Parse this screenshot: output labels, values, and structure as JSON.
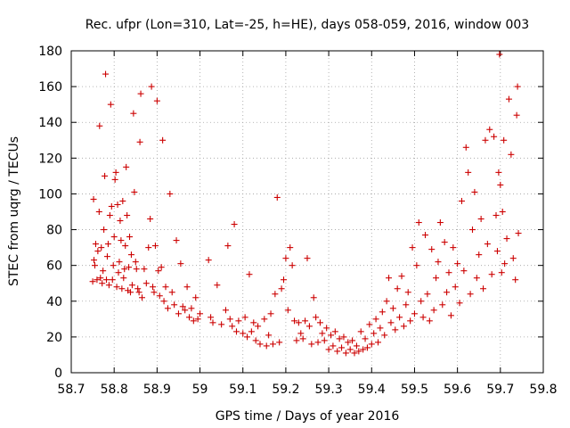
{
  "chart_data": {
    "type": "scatter",
    "title": "Rec. ufpr (Lon=310, Lat=-25, h=HE), days 058-059, 2016, window 003",
    "xlabel": "GPS time / Days of year 2016",
    "ylabel": "STEC from uqrg / TECUs",
    "xlim": [
      58.7,
      59.8
    ],
    "ylim": [
      0,
      180
    ],
    "xticks": [
      "58.7",
      "58.8",
      "58.9",
      "59",
      "59.1",
      "59.2",
      "59.3",
      "59.4",
      "59.5",
      "59.6",
      "59.7",
      "59.8"
    ],
    "yticks": [
      "0",
      "20",
      "40",
      "60",
      "80",
      "100",
      "120",
      "140",
      "160",
      "180"
    ],
    "grid": true,
    "marker": "+",
    "color": "#cc0000",
    "series": [
      {
        "values": [
          [
            58.75,
            51
          ],
          [
            58.753,
            63
          ],
          [
            58.755,
            60
          ],
          [
            58.757,
            72
          ],
          [
            58.752,
            97
          ],
          [
            58.76,
            52
          ],
          [
            58.762,
            68
          ],
          [
            58.765,
            90
          ],
          [
            58.766,
            138
          ],
          [
            58.768,
            53
          ],
          [
            58.77,
            70
          ],
          [
            58.772,
            50
          ],
          [
            58.774,
            57
          ],
          [
            58.776,
            80
          ],
          [
            58.778,
            110
          ],
          [
            58.78,
            167
          ],
          [
            58.782,
            52
          ],
          [
            58.784,
            65
          ],
          [
            58.786,
            72
          ],
          [
            58.788,
            49
          ],
          [
            58.79,
            88
          ],
          [
            58.792,
            150
          ],
          [
            58.794,
            93
          ],
          [
            58.796,
            52
          ],
          [
            58.798,
            60
          ],
          [
            58.8,
            76
          ],
          [
            58.802,
            108
          ],
          [
            58.804,
            112
          ],
          [
            58.806,
            48
          ],
          [
            58.808,
            94
          ],
          [
            58.81,
            56
          ],
          [
            58.812,
            62
          ],
          [
            58.814,
            85
          ],
          [
            58.816,
            74
          ],
          [
            58.818,
            47
          ],
          [
            58.82,
            96
          ],
          [
            58.822,
            53
          ],
          [
            58.824,
            58
          ],
          [
            58.826,
            71
          ],
          [
            58.828,
            115
          ],
          [
            58.83,
            88
          ],
          [
            58.832,
            46
          ],
          [
            58.834,
            59
          ],
          [
            58.836,
            76
          ],
          [
            58.838,
            45
          ],
          [
            58.84,
            66
          ],
          [
            58.842,
            49
          ],
          [
            58.845,
            145
          ],
          [
            58.847,
            101
          ],
          [
            58.85,
            62
          ],
          [
            58.852,
            58
          ],
          [
            58.855,
            47
          ],
          [
            58.858,
            45
          ],
          [
            58.86,
            129
          ],
          [
            58.862,
            156
          ],
          [
            58.865,
            42
          ],
          [
            58.87,
            58
          ],
          [
            58.875,
            50
          ],
          [
            58.88,
            70
          ],
          [
            58.884,
            86
          ],
          [
            58.887,
            160
          ],
          [
            58.89,
            48
          ],
          [
            58.893,
            45
          ],
          [
            58.896,
            71
          ],
          [
            58.9,
            152
          ],
          [
            58.903,
            57
          ],
          [
            58.906,
            43
          ],
          [
            58.91,
            59
          ],
          [
            58.913,
            130
          ],
          [
            58.916,
            40
          ],
          [
            58.92,
            48
          ],
          [
            58.925,
            36
          ],
          [
            58.93,
            100
          ],
          [
            58.935,
            45
          ],
          [
            58.94,
            38
          ],
          [
            58.945,
            74
          ],
          [
            58.95,
            33
          ],
          [
            58.955,
            61
          ],
          [
            58.96,
            37
          ],
          [
            58.965,
            35
          ],
          [
            58.97,
            48
          ],
          [
            58.975,
            31
          ],
          [
            58.98,
            36
          ],
          [
            58.985,
            29
          ],
          [
            58.99,
            42
          ],
          [
            58.995,
            30
          ],
          [
            59.0,
            33
          ],
          [
            59.02,
            63
          ],
          [
            59.025,
            31
          ],
          [
            59.03,
            28
          ],
          [
            59.04,
            49
          ],
          [
            59.05,
            27
          ],
          [
            59.06,
            35
          ],
          [
            59.065,
            71
          ],
          [
            59.07,
            30
          ],
          [
            59.075,
            26
          ],
          [
            59.08,
            83
          ],
          [
            59.085,
            23
          ],
          [
            59.09,
            29
          ],
          [
            59.1,
            22
          ],
          [
            59.105,
            31
          ],
          [
            59.11,
            20
          ],
          [
            59.115,
            55
          ],
          [
            59.12,
            23
          ],
          [
            59.125,
            28
          ],
          [
            59.13,
            18
          ],
          [
            59.135,
            26
          ],
          [
            59.14,
            16
          ],
          [
            59.15,
            30
          ],
          [
            59.155,
            15
          ],
          [
            59.16,
            21
          ],
          [
            59.165,
            33
          ],
          [
            59.17,
            16
          ],
          [
            59.175,
            44
          ],
          [
            59.18,
            98
          ],
          [
            59.185,
            17
          ],
          [
            59.19,
            47
          ],
          [
            59.195,
            52
          ],
          [
            59.2,
            64
          ],
          [
            59.205,
            35
          ],
          [
            59.21,
            70
          ],
          [
            59.215,
            60
          ],
          [
            59.22,
            29
          ],
          [
            59.225,
            18
          ],
          [
            59.23,
            28
          ],
          [
            59.235,
            22
          ],
          [
            59.24,
            19
          ],
          [
            59.245,
            29
          ],
          [
            59.25,
            64
          ],
          [
            59.255,
            26
          ],
          [
            59.26,
            16
          ],
          [
            59.265,
            42
          ],
          [
            59.27,
            31
          ],
          [
            59.275,
            17
          ],
          [
            59.28,
            28
          ],
          [
            59.285,
            22
          ],
          [
            59.29,
            18
          ],
          [
            59.295,
            25
          ],
          [
            59.3,
            13
          ],
          [
            59.305,
            21
          ],
          [
            59.31,
            15
          ],
          [
            59.315,
            23
          ],
          [
            59.32,
            12
          ],
          [
            59.325,
            19
          ],
          [
            59.33,
            14
          ],
          [
            59.335,
            20
          ],
          [
            59.34,
            11
          ],
          [
            59.345,
            17
          ],
          [
            59.35,
            13
          ],
          [
            59.355,
            18
          ],
          [
            59.36,
            11
          ],
          [
            59.365,
            15
          ],
          [
            59.37,
            12
          ],
          [
            59.375,
            23
          ],
          [
            59.38,
            13
          ],
          [
            59.385,
            19
          ],
          [
            59.39,
            14
          ],
          [
            59.395,
            27
          ],
          [
            59.4,
            16
          ],
          [
            59.405,
            22
          ],
          [
            59.41,
            30
          ],
          [
            59.415,
            17
          ],
          [
            59.42,
            25
          ],
          [
            59.425,
            34
          ],
          [
            59.43,
            21
          ],
          [
            59.435,
            40
          ],
          [
            59.44,
            53
          ],
          [
            59.445,
            28
          ],
          [
            59.45,
            36
          ],
          [
            59.455,
            24
          ],
          [
            59.46,
            47
          ],
          [
            59.465,
            31
          ],
          [
            59.47,
            54
          ],
          [
            59.475,
            26
          ],
          [
            59.48,
            38
          ],
          [
            59.485,
            45
          ],
          [
            59.49,
            29
          ],
          [
            59.495,
            70
          ],
          [
            59.5,
            33
          ],
          [
            59.505,
            60
          ],
          [
            59.51,
            84
          ],
          [
            59.515,
            40
          ],
          [
            59.52,
            31
          ],
          [
            59.525,
            77
          ],
          [
            59.53,
            44
          ],
          [
            59.535,
            29
          ],
          [
            59.54,
            69
          ],
          [
            59.545,
            35
          ],
          [
            59.55,
            53
          ],
          [
            59.555,
            62
          ],
          [
            59.56,
            84
          ],
          [
            59.565,
            38
          ],
          [
            59.57,
            73
          ],
          [
            59.575,
            45
          ],
          [
            59.58,
            56
          ],
          [
            59.585,
            32
          ],
          [
            59.59,
            70
          ],
          [
            59.595,
            48
          ],
          [
            59.6,
            61
          ],
          [
            59.605,
            39
          ],
          [
            59.61,
            96
          ],
          [
            59.615,
            57
          ],
          [
            59.62,
            126
          ],
          [
            59.625,
            112
          ],
          [
            59.63,
            44
          ],
          [
            59.635,
            80
          ],
          [
            59.64,
            101
          ],
          [
            59.645,
            53
          ],
          [
            59.65,
            66
          ],
          [
            59.655,
            86
          ],
          [
            59.66,
            47
          ],
          [
            59.665,
            130
          ],
          [
            59.67,
            72
          ],
          [
            59.675,
            136
          ],
          [
            59.68,
            55
          ],
          [
            59.685,
            132
          ],
          [
            59.69,
            88
          ],
          [
            59.693,
            68
          ],
          [
            59.696,
            112
          ],
          [
            59.698,
            178
          ],
          [
            59.7,
            105
          ],
          [
            59.703,
            56
          ],
          [
            59.705,
            90
          ],
          [
            59.708,
            130
          ],
          [
            59.71,
            61
          ],
          [
            59.715,
            75
          ],
          [
            59.72,
            153
          ],
          [
            59.725,
            122
          ],
          [
            59.73,
            64
          ],
          [
            59.735,
            52
          ],
          [
            59.738,
            144
          ],
          [
            59.74,
            160
          ],
          [
            59.742,
            78
          ]
        ]
      }
    ]
  }
}
